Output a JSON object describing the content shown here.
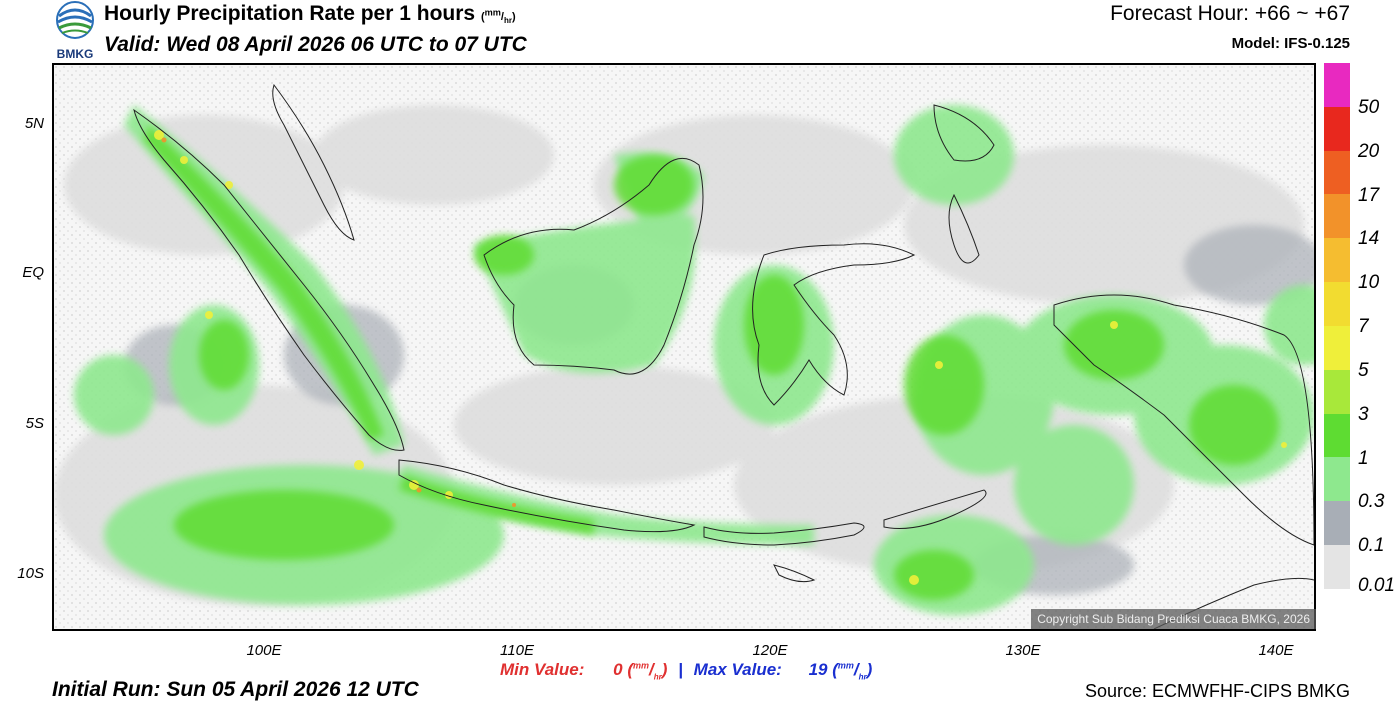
{
  "header": {
    "title": "Hourly Precipitation Rate per 1 hours",
    "title_unit_top": "mm",
    "title_unit_bottom": "hr",
    "valid": "Valid: Wed 08 April 2026 06 UTC to 07 UTC",
    "forecast_hour": "Forecast Hour: +66 ~ +67",
    "model": "Model: IFS-0.125",
    "logo_text": "BMKG"
  },
  "map": {
    "lat_labels": [
      "5N",
      "EQ",
      "5S",
      "10S"
    ],
    "lon_labels": [
      "100E",
      "110E",
      "120E",
      "130E",
      "140E"
    ],
    "copyright": "Copyright Sub Bidang Prediksi Cuaca BMKG, 2026"
  },
  "legend": {
    "labels": [
      "50",
      "20",
      "17",
      "14",
      "10",
      "7",
      "5",
      "3",
      "1",
      "0.3",
      "0.1",
      "0.01"
    ],
    "colors": [
      "#e829c0",
      "#e8281e",
      "#ee5f22",
      "#f2922a",
      "#f5bd30",
      "#f2dc30",
      "#efef3a",
      "#a8e83a",
      "#5edc32",
      "#8ee88e",
      "#a8aeb6",
      "#e4e4e4"
    ]
  },
  "stats": {
    "min_label": "Min Value:",
    "min_value": "0",
    "max_label": "Max Value:",
    "max_value": "19",
    "separator": "|",
    "unit_top": "mm",
    "unit_bottom": "hr"
  },
  "footer": {
    "initial_run": "Initial Run: Sun 05 April 2026 12 UTC",
    "source": "Source: ECMWFHF-CIPS BMKG"
  }
}
